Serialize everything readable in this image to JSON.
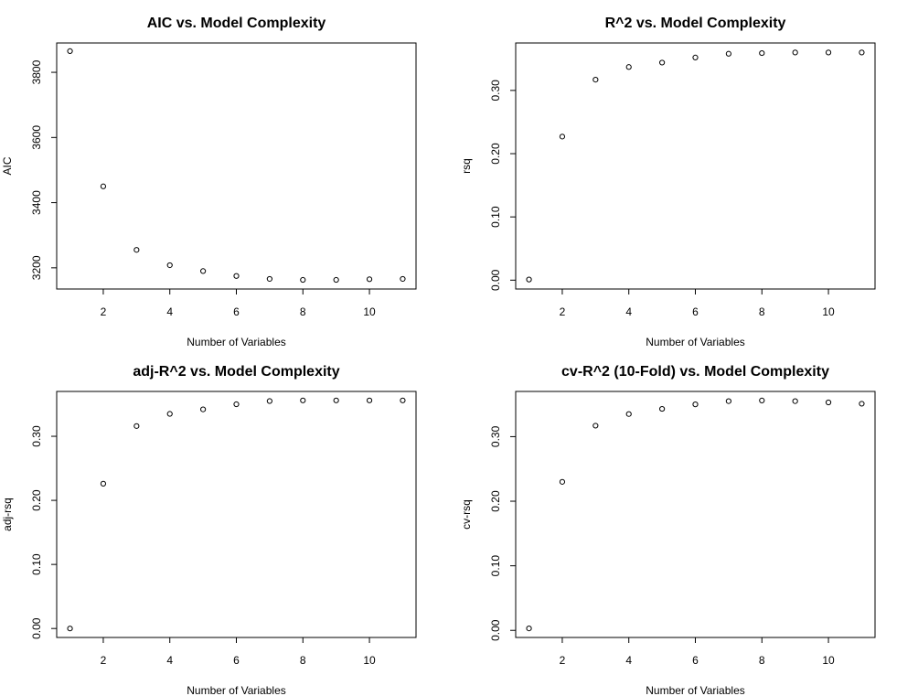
{
  "chart_data": [
    {
      "type": "scatter",
      "title": "AIC vs. Model Complexity",
      "xlabel": "Number of Variables",
      "ylabel": "AIC",
      "x": [
        1,
        2,
        3,
        4,
        5,
        6,
        7,
        8,
        9,
        10,
        11
      ],
      "y": [
        3865,
        3450,
        3255,
        3208,
        3190,
        3175,
        3166,
        3163,
        3163,
        3165,
        3166
      ],
      "xticks": [
        2,
        4,
        6,
        8,
        10
      ],
      "yticks": [
        3200,
        3400,
        3600,
        3800
      ],
      "xlim": [
        0.6,
        11.4
      ],
      "ylim": [
        3135,
        3890
      ],
      "grid": false
    },
    {
      "type": "scatter",
      "title": "R^2 vs. Model Complexity",
      "xlabel": "Number of Variables",
      "ylabel": "rsq",
      "x": [
        1,
        2,
        3,
        4,
        5,
        6,
        7,
        8,
        9,
        10,
        11
      ],
      "y": [
        0.001,
        0.227,
        0.317,
        0.337,
        0.344,
        0.352,
        0.358,
        0.359,
        0.36,
        0.36,
        0.36
      ],
      "xticks": [
        2,
        4,
        6,
        8,
        10
      ],
      "yticks": [
        0.0,
        0.1,
        0.2,
        0.3
      ],
      "ytick_labels": [
        "0.00",
        "0.10",
        "0.20",
        "0.30"
      ],
      "xlim": [
        0.6,
        11.4
      ],
      "ylim": [
        -0.014,
        0.375
      ],
      "grid": false
    },
    {
      "type": "scatter",
      "title": "adj-R^2 vs. Model Complexity",
      "xlabel": "Number of Variables",
      "ylabel": "adj-rsq",
      "x": [
        1,
        2,
        3,
        4,
        5,
        6,
        7,
        8,
        9,
        10,
        11
      ],
      "y": [
        0.0,
        0.226,
        0.316,
        0.335,
        0.342,
        0.35,
        0.355,
        0.356,
        0.356,
        0.356,
        0.356
      ],
      "xticks": [
        2,
        4,
        6,
        8,
        10
      ],
      "yticks": [
        0.0,
        0.1,
        0.2,
        0.3
      ],
      "ytick_labels": [
        "0.00",
        "0.10",
        "0.20",
        "0.30"
      ],
      "xlim": [
        0.6,
        11.4
      ],
      "ylim": [
        -0.014,
        0.37
      ],
      "grid": false
    },
    {
      "type": "scatter",
      "title": "cv-R^2 (10-Fold) vs. Model Complexity",
      "xlabel": "Number of Variables",
      "ylabel": "cv-rsq",
      "x": [
        1,
        2,
        3,
        4,
        5,
        6,
        7,
        8,
        9,
        10,
        11
      ],
      "y": [
        0.003,
        0.23,
        0.317,
        0.335,
        0.343,
        0.35,
        0.355,
        0.356,
        0.355,
        0.353,
        0.351
      ],
      "xticks": [
        2,
        4,
        6,
        8,
        10
      ],
      "yticks": [
        0.0,
        0.1,
        0.2,
        0.3
      ],
      "ytick_labels": [
        "0.00",
        "0.10",
        "0.20",
        "0.30"
      ],
      "xlim": [
        0.6,
        11.4
      ],
      "ylim": [
        -0.011,
        0.37
      ],
      "grid": false
    }
  ]
}
